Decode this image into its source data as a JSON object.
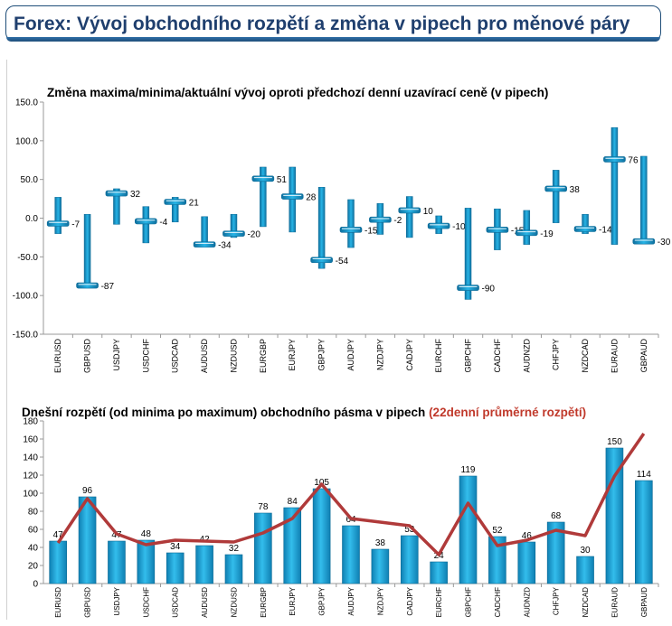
{
  "header": {
    "title": "Forex: Vývoj obchodního rozpětí a změna v pipech pro měnové páry"
  },
  "colors": {
    "bar": "#1fa3d6",
    "avg_line": "#b03a3a",
    "title_dark": "#1f3f6e",
    "accent_red": "#c0392b"
  },
  "chart_data": [
    {
      "type": "bar",
      "title": "Změna maxima/minima/aktuální vývoj oproti předchozí denní uzavírací ceně (v pipech)",
      "categories": [
        "EURUSD",
        "GBPUSD",
        "USDJPY",
        "USDCHF",
        "USDCAD",
        "AUDUSD",
        "NZDUSD",
        "EURGBP",
        "EURJPY",
        "GBPJPY",
        "AUDJPY",
        "NZDJPY",
        "CADJPY",
        "EURCHF",
        "GBPCHF",
        "CADCHF",
        "AUDNZD",
        "CHFJPY",
        "NZDCAD",
        "EURAUD",
        "GBPAUD"
      ],
      "ylim": [
        -150,
        150
      ],
      "yticks": [
        "150.0",
        "100.0",
        "50.0",
        "0.0",
        "-50.0",
        "-100.0",
        "-150.0"
      ],
      "ytick_values": [
        150,
        100,
        50,
        0,
        -50,
        -100,
        -150
      ],
      "high": [
        27,
        5,
        38,
        15,
        27,
        2,
        5,
        66,
        66,
        40,
        24,
        19,
        28,
        3,
        13,
        12,
        10,
        62,
        5,
        117,
        80
      ],
      "low": [
        -20,
        -88,
        -8,
        -32,
        -5,
        -37,
        -25,
        -11,
        -18,
        -65,
        -38,
        -21,
        -25,
        -20,
        -105,
        -41,
        -34,
        -6,
        -20,
        -34,
        -33
      ],
      "current": [
        -7,
        -87,
        32,
        -4,
        21,
        -34,
        -20,
        51,
        28,
        -54,
        -15,
        -2,
        10,
        -10,
        -90,
        -15,
        -19,
        38,
        -14,
        76,
        -30
      ],
      "labels": [
        "-7",
        "-87",
        "32",
        "-4",
        "21",
        "-34",
        "-20",
        "51",
        "28",
        "-54",
        "-15",
        "-2",
        "10",
        "-10",
        "-90",
        "-15",
        "-19",
        "38",
        "-14",
        "76",
        "-30"
      ]
    },
    {
      "type": "bar",
      "title": "Dnešní rozpětí (od minima po maximum) obchodního pásma v pipech",
      "title_highlight": "(22denní průměrné rozpětí)",
      "categories": [
        "EURUSD",
        "GBPUSD",
        "USDJPY",
        "USDCHF",
        "USDCAD",
        "AUDUSD",
        "NZDUSD",
        "EURGBP",
        "EURJPY",
        "GBPJPY",
        "AUDJPY",
        "NZDJPY",
        "CADJPY",
        "EURCHF",
        "GBPCHF",
        "CADCHF",
        "AUDNZD",
        "CHFJPY",
        "NZDCAD",
        "EURAUD",
        "GBPAUD"
      ],
      "ylim": [
        0,
        180
      ],
      "yticks": [
        "0",
        "20",
        "40",
        "60",
        "80",
        "100",
        "120",
        "140",
        "160",
        "180"
      ],
      "ytick_values": [
        0,
        20,
        40,
        60,
        80,
        100,
        120,
        140,
        160,
        180
      ],
      "values": [
        47,
        96,
        47,
        48,
        34,
        42,
        32,
        78,
        84,
        105,
        64,
        38,
        53,
        24,
        119,
        52,
        46,
        68,
        30,
        150,
        114
      ],
      "labels": [
        "47",
        "96",
        "47",
        "48",
        "34",
        "42",
        "32",
        "78",
        "84",
        "105",
        "64",
        "38",
        "53",
        "24",
        "119",
        "52",
        "46",
        "68",
        "30",
        "150",
        "114"
      ],
      "avg_line": [
        45,
        94,
        55,
        43,
        48,
        47,
        46,
        56,
        72,
        110,
        72,
        68,
        64,
        32,
        89,
        42,
        48,
        59,
        53,
        119,
        166
      ]
    }
  ]
}
